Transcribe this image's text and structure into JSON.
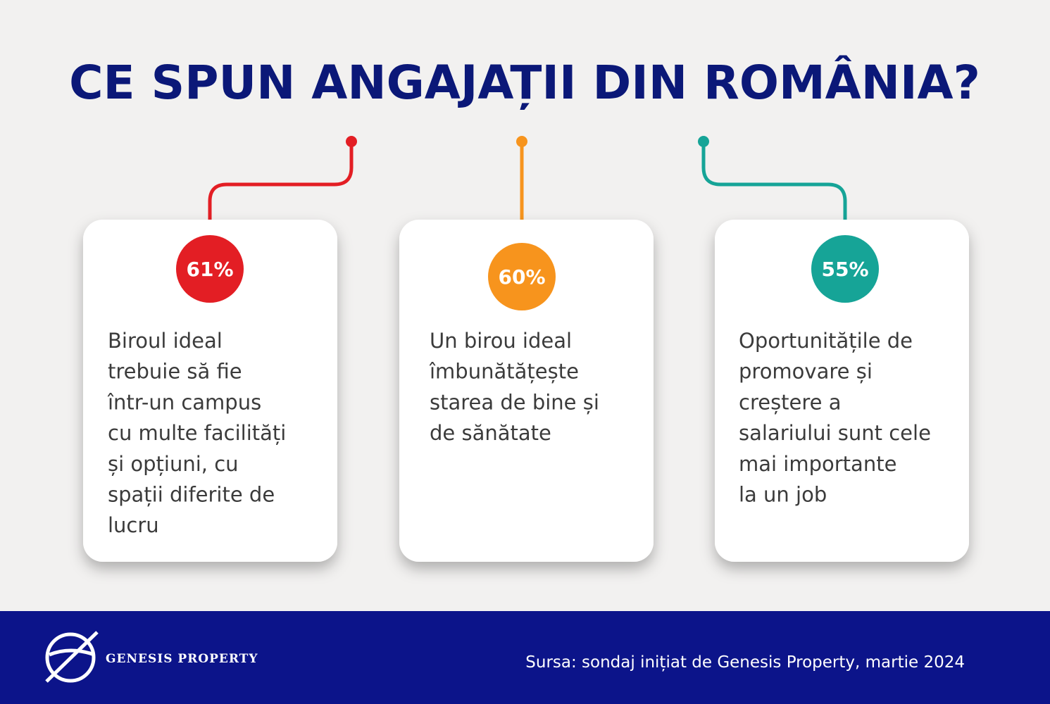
{
  "header": {
    "title": "CE SPUN ANGAJAȚII DIN ROMÂNIA?"
  },
  "cards": [
    {
      "percent": "61%",
      "lines": [
        "Biroul ideal",
        "trebuie să fie",
        "într-un campus",
        "cu multe facilități",
        "și opțiuni, cu",
        "spații diferite de",
        "lucru"
      ]
    },
    {
      "percent": "60%",
      "lines": [
        "Un birou ideal",
        "îmbunătățește",
        "starea de bine și",
        "de sănătate"
      ]
    },
    {
      "percent": "55%",
      "lines": [
        "Oportunitățile de",
        "promovare și",
        "creștere a",
        "salariului sunt cele",
        "mai importante",
        "la un job"
      ]
    }
  ],
  "footer": {
    "brand": "GENESIS PROPERTY",
    "source": "Sursa: sondaj inițiat de Genesis Property, martie 2024"
  }
}
